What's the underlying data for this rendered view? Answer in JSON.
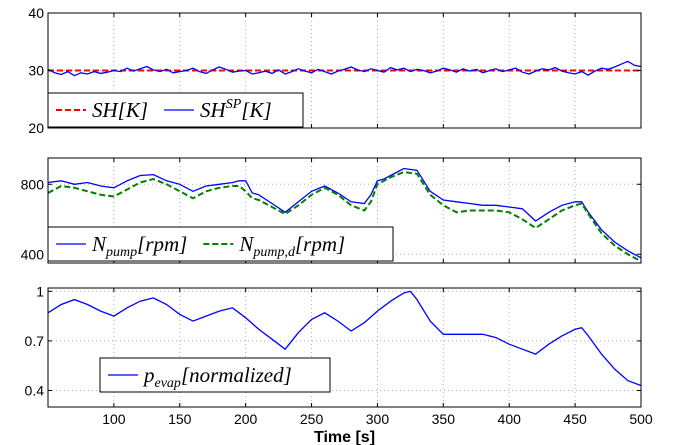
{
  "chart_data": [
    {
      "type": "line",
      "panel": "top",
      "xlim": [
        50,
        500
      ],
      "ylim": [
        20,
        40
      ],
      "yticks": [
        20,
        30,
        40
      ],
      "xticks": [
        100,
        150,
        200,
        250,
        300,
        350,
        400,
        450,
        500
      ],
      "grid": true,
      "legend_placement": "bottom-left",
      "series": [
        {
          "name": "SH[K]",
          "legend_main": "SH[K]",
          "legend_sup": "",
          "legend_sub": "",
          "color": "#ff0000",
          "style": "dashed",
          "x": [
            50,
            500
          ],
          "y": [
            30,
            30
          ]
        },
        {
          "name": "SH^SP[K]",
          "legend_main": "SH",
          "legend_sup": "SP",
          "legend_sub": "",
          "legend_suffix": "[K]",
          "color": "#0000ff",
          "style": "solid",
          "x": [
            50,
            55,
            60,
            65,
            70,
            75,
            80,
            85,
            90,
            95,
            100,
            105,
            110,
            115,
            120,
            125,
            130,
            135,
            140,
            145,
            150,
            155,
            160,
            165,
            170,
            175,
            180,
            185,
            190,
            195,
            200,
            205,
            210,
            215,
            220,
            225,
            230,
            235,
            240,
            245,
            250,
            255,
            260,
            265,
            270,
            275,
            280,
            285,
            290,
            295,
            300,
            305,
            310,
            315,
            320,
            325,
            330,
            335,
            340,
            345,
            350,
            355,
            360,
            365,
            370,
            375,
            380,
            385,
            390,
            395,
            400,
            405,
            410,
            415,
            420,
            425,
            430,
            435,
            440,
            445,
            450,
            455,
            460,
            465,
            470,
            475,
            480,
            485,
            490,
            495,
            500
          ],
          "y": [
            30.2,
            29.6,
            29.3,
            29.8,
            29.1,
            29.6,
            29.4,
            29.8,
            29.5,
            29.7,
            30.0,
            29.8,
            30.4,
            29.9,
            30.3,
            30.7,
            30.1,
            29.8,
            30.2,
            29.6,
            29.8,
            30.0,
            30.4,
            29.8,
            29.5,
            30.1,
            30.6,
            30.2,
            29.7,
            29.9,
            30.0,
            29.4,
            29.6,
            29.9,
            29.5,
            30.1,
            29.4,
            29.8,
            30.3,
            29.9,
            29.6,
            30.2,
            29.8,
            29.4,
            29.9,
            30.2,
            30.6,
            30.1,
            29.8,
            30.3,
            30.0,
            29.7,
            30.5,
            30.1,
            30.4,
            29.8,
            30.2,
            30.0,
            29.6,
            29.9,
            30.4,
            30.1,
            29.7,
            30.3,
            29.9,
            30.2,
            29.6,
            30.0,
            30.3,
            29.8,
            30.1,
            30.4,
            29.7,
            29.4,
            29.9,
            30.3,
            30.1,
            30.5,
            29.9,
            29.6,
            29.4,
            29.8,
            29.2,
            29.9,
            30.4,
            30.2,
            30.6,
            31.1,
            31.6,
            30.9,
            30.7
          ]
        }
      ]
    },
    {
      "type": "line",
      "panel": "middle",
      "xlim": [
        50,
        500
      ],
      "ylim": [
        350,
        950
      ],
      "yticks": [
        400,
        800
      ],
      "xticks": [
        100,
        150,
        200,
        250,
        300,
        350,
        400,
        450,
        500
      ],
      "grid": true,
      "legend_placement": "bottom-left",
      "series": [
        {
          "name": "N_pump[rpm]",
          "legend_main": "N",
          "legend_sup": "",
          "legend_sub": "pump",
          "legend_suffix": "[rpm]",
          "color": "#0000ff",
          "style": "solid",
          "x": [
            50,
            60,
            70,
            80,
            90,
            100,
            110,
            120,
            130,
            140,
            150,
            160,
            170,
            180,
            190,
            195,
            200,
            205,
            210,
            220,
            230,
            240,
            250,
            260,
            270,
            280,
            290,
            295,
            300,
            305,
            310,
            320,
            330,
            340,
            350,
            360,
            370,
            380,
            390,
            400,
            410,
            420,
            430,
            440,
            450,
            455,
            460,
            470,
            480,
            490,
            500
          ],
          "y": [
            810,
            820,
            800,
            810,
            790,
            780,
            820,
            850,
            855,
            820,
            800,
            760,
            790,
            800,
            810,
            820,
            820,
            750,
            740,
            690,
            640,
            700,
            760,
            790,
            750,
            700,
            690,
            740,
            820,
            830,
            850,
            890,
            880,
            760,
            710,
            700,
            690,
            680,
            680,
            670,
            660,
            590,
            640,
            680,
            700,
            700,
            640,
            540,
            470,
            420,
            380
          ]
        },
        {
          "name": "N_pump,d[rpm]",
          "legend_main": "N",
          "legend_sup": "",
          "legend_sub": "pump,d",
          "legend_suffix": "[rpm]",
          "color": "#008000",
          "style": "dashed",
          "x": [
            50,
            60,
            70,
            80,
            90,
            100,
            110,
            120,
            130,
            140,
            150,
            160,
            170,
            180,
            190,
            195,
            200,
            205,
            210,
            220,
            230,
            240,
            250,
            260,
            270,
            280,
            290,
            295,
            300,
            305,
            310,
            320,
            330,
            340,
            350,
            360,
            370,
            380,
            390,
            400,
            410,
            420,
            430,
            440,
            450,
            455,
            460,
            470,
            480,
            490,
            500
          ],
          "y": [
            750,
            790,
            780,
            760,
            740,
            730,
            770,
            810,
            830,
            800,
            760,
            720,
            760,
            780,
            790,
            790,
            760,
            720,
            710,
            670,
            630,
            680,
            740,
            780,
            740,
            680,
            650,
            700,
            800,
            820,
            840,
            870,
            860,
            740,
            680,
            640,
            650,
            650,
            650,
            640,
            600,
            550,
            600,
            650,
            680,
            690,
            630,
            520,
            450,
            400,
            360
          ]
        }
      ]
    },
    {
      "type": "line",
      "panel": "bottom",
      "xlim": [
        50,
        500
      ],
      "ylim": [
        0.3,
        1.02
      ],
      "yticks": [
        0.4,
        0.7,
        1
      ],
      "ytick_labels": [
        "0.4",
        "0.7",
        "1"
      ],
      "xticks": [
        100,
        150,
        200,
        250,
        300,
        350,
        400,
        450,
        500
      ],
      "xtick_labels": [
        "100",
        "150",
        "200",
        "250",
        "300",
        "350",
        "400",
        "450",
        "500"
      ],
      "xlabel": "Time [s]",
      "grid": true,
      "legend_placement": "bottom-left",
      "series": [
        {
          "name": "p_evap[normalized]",
          "legend_main": "p",
          "legend_sup": "",
          "legend_sub": "evap",
          "legend_suffix": "[normalized]",
          "color": "#0000ff",
          "style": "solid",
          "x": [
            50,
            60,
            70,
            80,
            90,
            100,
            110,
            120,
            130,
            140,
            150,
            160,
            170,
            180,
            190,
            200,
            210,
            220,
            230,
            240,
            250,
            260,
            270,
            280,
            290,
            300,
            310,
            320,
            325,
            330,
            340,
            350,
            360,
            370,
            380,
            390,
            400,
            410,
            420,
            430,
            440,
            450,
            455,
            460,
            470,
            480,
            490,
            500
          ],
          "y": [
            0.87,
            0.92,
            0.95,
            0.92,
            0.88,
            0.85,
            0.9,
            0.94,
            0.96,
            0.92,
            0.86,
            0.82,
            0.85,
            0.88,
            0.9,
            0.84,
            0.77,
            0.71,
            0.65,
            0.75,
            0.83,
            0.87,
            0.82,
            0.76,
            0.81,
            0.88,
            0.94,
            0.99,
            1.0,
            0.95,
            0.82,
            0.74,
            0.74,
            0.74,
            0.74,
            0.72,
            0.68,
            0.65,
            0.62,
            0.68,
            0.73,
            0.77,
            0.78,
            0.73,
            0.62,
            0.53,
            0.46,
            0.43
          ]
        }
      ]
    }
  ]
}
